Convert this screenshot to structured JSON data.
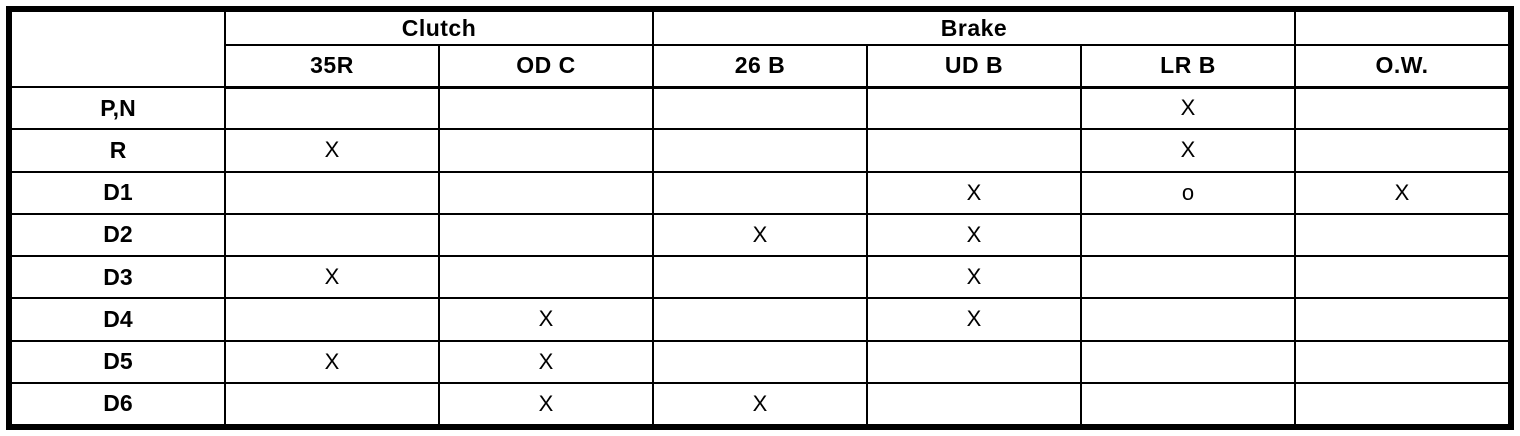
{
  "table": {
    "group_headers": {
      "corner": "",
      "clutch": "Clutch",
      "brake": "Brake",
      "right_blank": ""
    },
    "columns": [
      "35R",
      "OD C",
      "26 B",
      "UD B",
      "LR B",
      "O.W."
    ],
    "rows": [
      {
        "label": "P,N",
        "cells": [
          "",
          "",
          "",
          "",
          "X",
          ""
        ]
      },
      {
        "label": "R",
        "cells": [
          "X",
          "",
          "",
          "",
          "X",
          ""
        ]
      },
      {
        "label": "D1",
        "cells": [
          "",
          "",
          "",
          "X",
          "o",
          "X"
        ]
      },
      {
        "label": "D2",
        "cells": [
          "",
          "",
          "X",
          "X",
          "",
          ""
        ]
      },
      {
        "label": "D3",
        "cells": [
          "X",
          "",
          "",
          "X",
          "",
          ""
        ]
      },
      {
        "label": "D4",
        "cells": [
          "",
          "X",
          "",
          "X",
          "",
          ""
        ]
      },
      {
        "label": "D5",
        "cells": [
          "X",
          "X",
          "",
          "",
          "",
          ""
        ]
      },
      {
        "label": "D6",
        "cells": [
          "",
          "X",
          "X",
          "",
          "",
          ""
        ]
      }
    ]
  },
  "colors": {
    "border": "#000000",
    "text": "#000000",
    "background": "#ffffff"
  }
}
